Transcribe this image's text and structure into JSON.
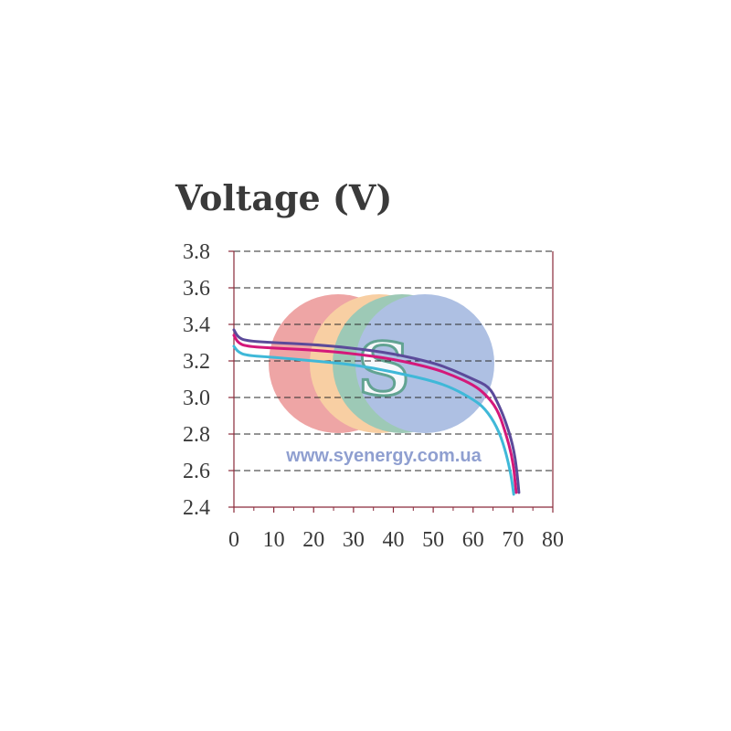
{
  "chart_data": {
    "type": "line",
    "title": "Voltage (V)",
    "xlabel": "",
    "ylabel": "",
    "xlim": [
      0,
      80
    ],
    "ylim": [
      2.4,
      3.8
    ],
    "x_ticks": [
      "0",
      "10",
      "20",
      "30",
      "40",
      "50",
      "60",
      "70",
      "80"
    ],
    "y_ticks": [
      "2.4",
      "2.6",
      "2.8",
      "3.0",
      "3.2",
      "3.4",
      "3.6",
      "3.8"
    ],
    "grid": "horizontal dashed",
    "legend": "none",
    "series": [
      {
        "color": "#5b4a9a",
        "points": [
          [
            0,
            3.37
          ],
          [
            1,
            3.33
          ],
          [
            3,
            3.31
          ],
          [
            10,
            3.3
          ],
          [
            20,
            3.29
          ],
          [
            30,
            3.27
          ],
          [
            40,
            3.24
          ],
          [
            50,
            3.19
          ],
          [
            55,
            3.15
          ],
          [
            60,
            3.1
          ],
          [
            64,
            3.06
          ],
          [
            66,
            2.98
          ],
          [
            68,
            2.88
          ],
          [
            70,
            2.74
          ],
          [
            71,
            2.6
          ],
          [
            71.5,
            2.48
          ]
        ]
      },
      {
        "color": "#d4187a",
        "points": [
          [
            0,
            3.34
          ],
          [
            1,
            3.3
          ],
          [
            3,
            3.28
          ],
          [
            10,
            3.27
          ],
          [
            20,
            3.26
          ],
          [
            30,
            3.24
          ],
          [
            40,
            3.21
          ],
          [
            50,
            3.16
          ],
          [
            55,
            3.12
          ],
          [
            60,
            3.07
          ],
          [
            63,
            3.02
          ],
          [
            66,
            2.94
          ],
          [
            68,
            2.82
          ],
          [
            70,
            2.66
          ],
          [
            70.8,
            2.48
          ]
        ]
      },
      {
        "color": "#3fb8d8",
        "points": [
          [
            0,
            3.28
          ],
          [
            1,
            3.25
          ],
          [
            3,
            3.23
          ],
          [
            10,
            3.22
          ],
          [
            20,
            3.2
          ],
          [
            30,
            3.18
          ],
          [
            40,
            3.14
          ],
          [
            50,
            3.09
          ],
          [
            55,
            3.05
          ],
          [
            60,
            2.99
          ],
          [
            63,
            2.94
          ],
          [
            66,
            2.84
          ],
          [
            68,
            2.72
          ],
          [
            69.5,
            2.58
          ],
          [
            70.2,
            2.47
          ]
        ]
      }
    ]
  },
  "watermark": {
    "text": "www.syenergy.com.ua",
    "logo_letter": "S",
    "colors": [
      "#e46f6f",
      "#f5b26b",
      "#62a98a",
      "#7d9bd3"
    ]
  }
}
